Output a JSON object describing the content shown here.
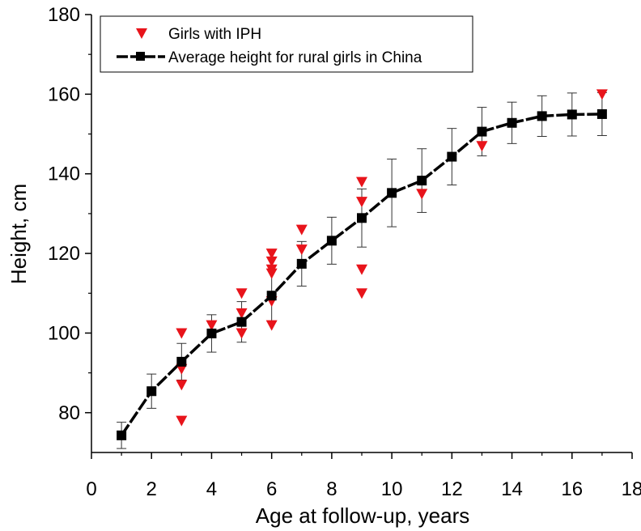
{
  "chart_data": {
    "type": "scatter",
    "title": "",
    "xlabel": "Age at follow-up, years",
    "ylabel": "Height, cm",
    "xlim": [
      0,
      18
    ],
    "ylim": [
      70,
      180
    ],
    "xticks": [
      0,
      2,
      4,
      6,
      8,
      10,
      12,
      14,
      16,
      18
    ],
    "yticks": [
      80,
      100,
      120,
      140,
      160,
      180
    ],
    "grid": false,
    "legend_position": "top-left",
    "series": [
      {
        "name": "Girls with IPH",
        "marker": "triangle-down",
        "color": "#e8141b",
        "points": [
          {
            "x": 3,
            "y": 100
          },
          {
            "x": 3,
            "y": 91
          },
          {
            "x": 3,
            "y": 87
          },
          {
            "x": 3,
            "y": 78
          },
          {
            "x": 4,
            "y": 102
          },
          {
            "x": 5,
            "y": 110
          },
          {
            "x": 5,
            "y": 105
          },
          {
            "x": 5,
            "y": 100
          },
          {
            "x": 6,
            "y": 120
          },
          {
            "x": 6,
            "y": 118
          },
          {
            "x": 6,
            "y": 116
          },
          {
            "x": 6,
            "y": 115
          },
          {
            "x": 6,
            "y": 108
          },
          {
            "x": 6,
            "y": 102
          },
          {
            "x": 7,
            "y": 126
          },
          {
            "x": 7,
            "y": 121
          },
          {
            "x": 9,
            "y": 138
          },
          {
            "x": 9,
            "y": 133
          },
          {
            "x": 9,
            "y": 116
          },
          {
            "x": 9,
            "y": 110
          },
          {
            "x": 11,
            "y": 135
          },
          {
            "x": 13,
            "y": 147
          },
          {
            "x": 17,
            "y": 160
          }
        ]
      },
      {
        "name": "Average height for rural girls in China",
        "marker": "square",
        "color": "#000000",
        "x": [
          1,
          2,
          3,
          4,
          5,
          6,
          7,
          8,
          9,
          10,
          11,
          12,
          13,
          14,
          15,
          16,
          17
        ],
        "y": [
          74.3,
          85.4,
          92.8,
          99.9,
          102.8,
          109.4,
          117.4,
          123.2,
          128.9,
          135.2,
          138.3,
          144.3,
          150.6,
          152.8,
          154.5,
          154.9,
          155.0
        ],
        "err": [
          3.3,
          4.3,
          4.6,
          4.7,
          5.1,
          6.5,
          5.6,
          5.9,
          7.3,
          8.5,
          8.0,
          7.1,
          6.1,
          5.2,
          5.1,
          5.4,
          5.4
        ]
      }
    ]
  }
}
